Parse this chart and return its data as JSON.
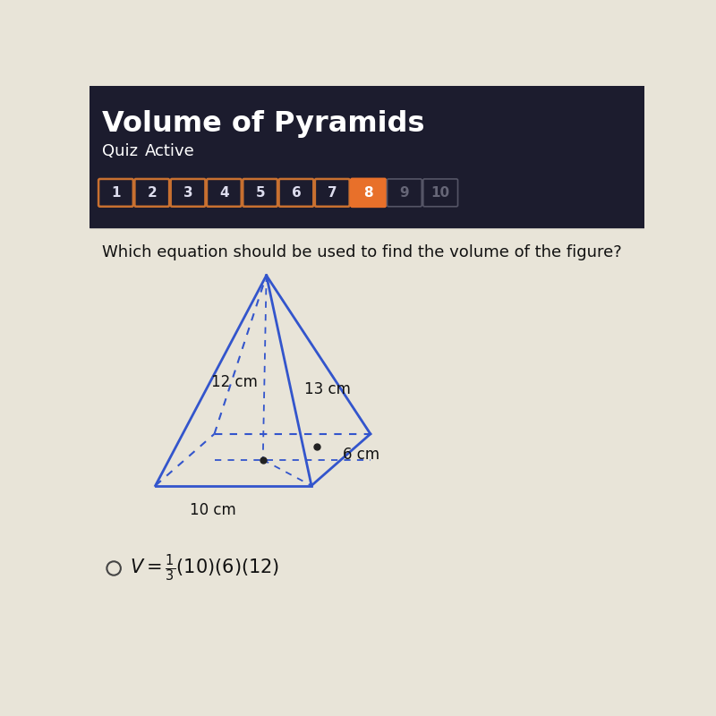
{
  "title": "Volume of Pyramids",
  "subtitle_left": "Quiz",
  "subtitle_right": "Active",
  "header_bg": "#1c1c2e",
  "header_title_color": "#ffffff",
  "header_subtitle_color": "#ffffff",
  "quiz_numbers": [
    1,
    2,
    3,
    4,
    5,
    6,
    7,
    8,
    9,
    10
  ],
  "active_number": 8,
  "active_color": "#e8702a",
  "btn_outlined_color": "#1c1c2e",
  "btn_outlined_edge": "#c87030",
  "btn_inactive_color": "#1c1c2e",
  "btn_inactive_edge": "#555566",
  "body_bg": "#e8e4d8",
  "question_text": "Which equation should be used to find the volume of the figure?",
  "label_12": "12 cm",
  "label_13": "13 cm",
  "label_6": "6 cm",
  "label_10": "10 cm",
  "pyramid_color": "#3355cc",
  "text_color": "#111111"
}
